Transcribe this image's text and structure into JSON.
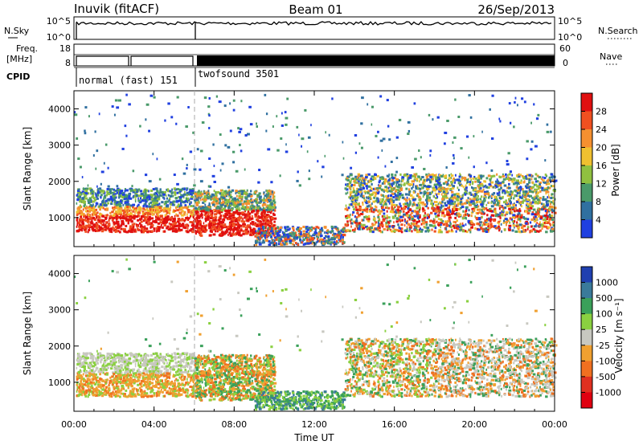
{
  "header": {
    "station": "Inuvik (fitACF)",
    "beam": "Beam 01",
    "date": "26/Sep/2013"
  },
  "panel_labels": {
    "nsky": "N.Sky",
    "nsearch": "N.Search",
    "freq_line1": "Freq.",
    "freq_line2": "[MHz]",
    "nave": "Nave",
    "cpid": "CPID"
  },
  "noise_axis": {
    "top": "10^5",
    "bottom": "10^0"
  },
  "freq_axis": {
    "ticks": [
      "18",
      "8"
    ]
  },
  "nave_axis": {
    "ticks": [
      "60",
      "0"
    ]
  },
  "cpid_programs": [
    {
      "name": "normal (fast) 151",
      "start_hour": 0,
      "end_hour": 6
    },
    {
      "name": "twofsound 3501",
      "start_hour": 6,
      "end_hour": 24
    }
  ],
  "chart_data": [
    {
      "type": "heatmap",
      "name": "power",
      "ylabel": "Slant Range [km]",
      "xlim": [
        0,
        24
      ],
      "ylim": [
        200,
        4500
      ],
      "yticks": [
        1000,
        2000,
        3000,
        4000
      ],
      "colorbar": {
        "label": "Power [dB]",
        "ticks": [
          "28",
          "24",
          "20",
          "16",
          "12",
          "8",
          "4"
        ],
        "colors": [
          "#e01010",
          "#f05020",
          "#f59030",
          "#f0c030",
          "#90c040",
          "#4a9a6a",
          "#3070a0",
          "#2040e0"
        ]
      },
      "echo_bands": [
        {
          "start_hour": 0.1,
          "end_hour": 6.0,
          "range_low": 600,
          "range_high": 1800,
          "level": "high"
        },
        {
          "start_hour": 6.0,
          "end_hour": 10.0,
          "range_low": 400,
          "range_high": 1800,
          "level": "high"
        },
        {
          "start_hour": 10.0,
          "end_hour": 13.5,
          "range_low": 200,
          "range_high": 700,
          "level": "mid"
        },
        {
          "start_hour": 13.5,
          "end_hour": 24.0,
          "range_low": 600,
          "range_high": 2200,
          "level": "mid"
        }
      ]
    },
    {
      "type": "heatmap",
      "name": "velocity",
      "ylabel": "Slant Range [km]",
      "xlabel": "Time UT",
      "xlim": [
        0,
        24
      ],
      "xticks": [
        "00:00",
        "04:00",
        "08:00",
        "12:00",
        "16:00",
        "20:00",
        "00:00"
      ],
      "ylim": [
        200,
        4500
      ],
      "yticks": [
        1000,
        2000,
        3000,
        4000
      ],
      "colorbar": {
        "label": "Velocity [m s⁻¹]",
        "ticks": [
          "1000",
          "500",
          "100",
          "25",
          "-25",
          "-100",
          "-500",
          "-1000"
        ],
        "colors": [
          "#2040b0",
          "#3a7a9a",
          "#3aa05a",
          "#8ad040",
          "#c8c8c0",
          "#f0a030",
          "#f07020",
          "#e03020",
          "#e00010"
        ]
      }
    }
  ]
}
